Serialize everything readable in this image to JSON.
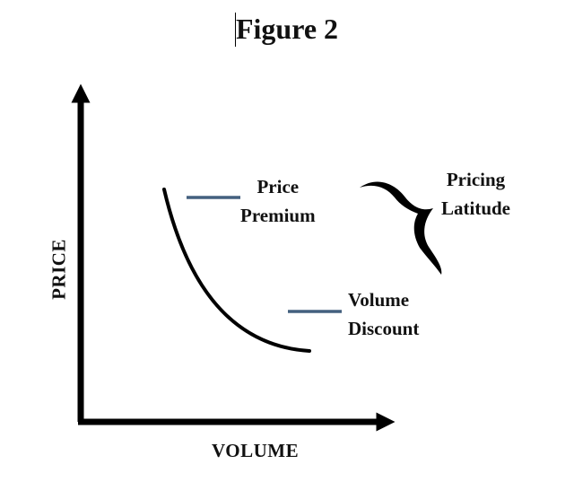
{
  "figure": {
    "title": "Figure 2"
  },
  "axes": {
    "y_label": "PRICE",
    "x_label": "VOLUME"
  },
  "annotations": {
    "price_premium": [
      "Price",
      "Premium"
    ],
    "volume_discount": [
      "Volume",
      "Discount"
    ],
    "pricing_latitude": [
      "Pricing",
      "Latitude"
    ]
  },
  "colors": {
    "ink": "#000000",
    "marker": "#44607f"
  }
}
